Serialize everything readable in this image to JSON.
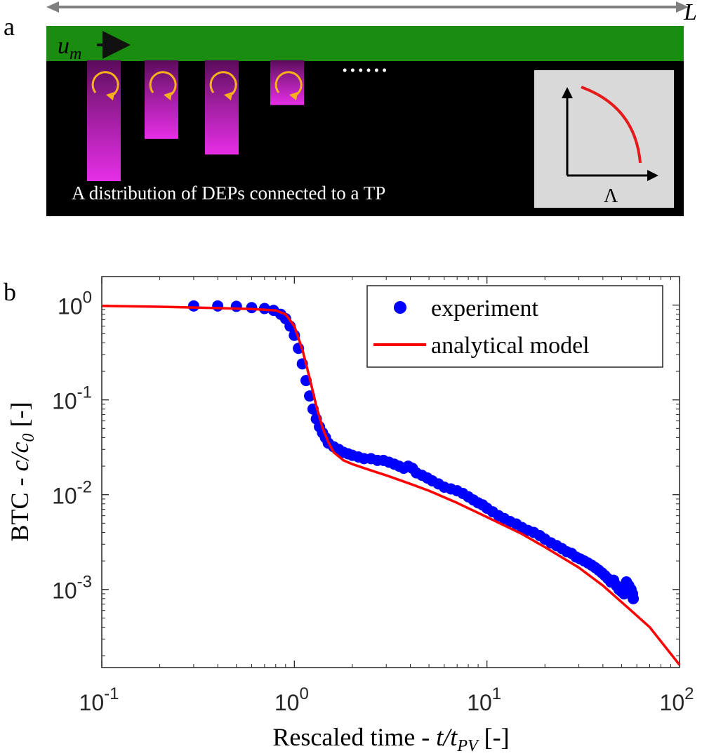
{
  "panel_a": {
    "letter": "a",
    "length_label": "L",
    "velocity_label": "u",
    "velocity_subscript": "m",
    "caption": "A distribution of DEPs connected to a TP",
    "ellipsis": "• • • • • •",
    "inset_axis_label": "Λ",
    "colors": {
      "channel": "#1a8c10",
      "pit": "#e62ee6",
      "background": "#000000",
      "vortex": "#f7b21b",
      "inset_bg": "#d9d9d9",
      "inset_curve": "#e51a1a"
    },
    "pit_depth_fractions": [
      1.0,
      0.65,
      0.78,
      0.37
    ]
  },
  "panel_b": {
    "letter": "b"
  },
  "chart_data": {
    "type": "scatter",
    "xscale": "log",
    "yscale": "log",
    "xlim": [
      0.1,
      100
    ],
    "ylim": [
      0.00015,
      2
    ],
    "xlabel": "Rescaled time - t/t_PV [-]",
    "xlabel_text": "Rescaled time - ",
    "xlabel_var": "t/t",
    "xlabel_sub": "PV",
    "xlabel_unit": " [-]",
    "ylabel_text": "BTC - ",
    "ylabel_var": "c/c",
    "ylabel_sub": "0",
    "ylabel_unit": " [-]",
    "xticks": [
      {
        "value": 0.1,
        "base": "10",
        "exp": "-1"
      },
      {
        "value": 1,
        "base": "10",
        "exp": "0"
      },
      {
        "value": 10,
        "base": "10",
        "exp": "1"
      },
      {
        "value": 100,
        "base": "10",
        "exp": "2"
      }
    ],
    "yticks": [
      {
        "value": 1,
        "base": "10",
        "exp": "0"
      },
      {
        "value": 0.1,
        "base": "10",
        "exp": "-1"
      },
      {
        "value": 0.01,
        "base": "10",
        "exp": "-2"
      },
      {
        "value": 0.001,
        "base": "10",
        "exp": "-3"
      }
    ],
    "legend": {
      "placement": "top-right",
      "entries": [
        "experiment",
        "analytical model"
      ]
    },
    "series": [
      {
        "name": "experiment",
        "kind": "scatter",
        "color": "#0000ff",
        "x": [
          0.3,
          0.4,
          0.5,
          0.6,
          0.7,
          0.78,
          0.85,
          0.9,
          0.95,
          1.0,
          1.05,
          1.1,
          1.15,
          1.2,
          1.25,
          1.3,
          1.35,
          1.4,
          1.45,
          1.5,
          1.6,
          1.7,
          1.8,
          1.9,
          2.0,
          2.15,
          2.3,
          2.5,
          2.7,
          2.9,
          3.1,
          3.3,
          3.5,
          3.7,
          3.9,
          4.1,
          4.3,
          4.6,
          4.9,
          5.2,
          5.6,
          6.0,
          6.5,
          7.0,
          7.5,
          8.0,
          8.5,
          9.0,
          9.5,
          10.0,
          10.7,
          11.5,
          12.3,
          13.2,
          14.2,
          15.2,
          16.3,
          17.5,
          18.8,
          20.0,
          21.5,
          23.0,
          24.5,
          26.0,
          27.5,
          29.0,
          30.5,
          32.0,
          33.5,
          35.0,
          36.5,
          38.0,
          39.5,
          41.0,
          42.5,
          44.0,
          45.5,
          47.0,
          48.5,
          50.0,
          51.5,
          53.0,
          54.5,
          56.0,
          57.0,
          57.5
        ],
        "y": [
          0.98,
          0.98,
          0.97,
          0.94,
          0.92,
          0.88,
          0.8,
          0.72,
          0.6,
          0.48,
          0.35,
          0.24,
          0.16,
          0.11,
          0.08,
          0.063,
          0.052,
          0.045,
          0.04,
          0.035,
          0.032,
          0.03,
          0.028,
          0.027,
          0.026,
          0.025,
          0.024,
          0.024,
          0.023,
          0.023,
          0.022,
          0.021,
          0.02,
          0.019,
          0.02,
          0.019,
          0.017,
          0.016,
          0.015,
          0.014,
          0.013,
          0.012,
          0.0115,
          0.011,
          0.0103,
          0.0095,
          0.0088,
          0.0082,
          0.0078,
          0.0072,
          0.0066,
          0.006,
          0.0056,
          0.0052,
          0.0049,
          0.0045,
          0.0042,
          0.004,
          0.0037,
          0.0034,
          0.0031,
          0.0029,
          0.0027,
          0.0025,
          0.0024,
          0.0022,
          0.0021,
          0.002,
          0.0019,
          0.0018,
          0.0017,
          0.0016,
          0.0015,
          0.0014,
          0.0013,
          0.0012,
          0.00125,
          0.0011,
          0.001,
          0.00095,
          0.0009,
          0.0012,
          0.0011,
          0.001,
          0.0009,
          0.0008
        ]
      },
      {
        "name": "analytical model",
        "kind": "line",
        "color": "#ff0000",
        "x": [
          0.1,
          0.2,
          0.4,
          0.6,
          0.8,
          0.9,
          1.0,
          1.1,
          1.2,
          1.3,
          1.4,
          1.5,
          1.6,
          1.8,
          2.0,
          2.5,
          3,
          4,
          5,
          7,
          10,
          15,
          20,
          30,
          40,
          55,
          70,
          100
        ],
        "y": [
          0.98,
          0.96,
          0.93,
          0.91,
          0.88,
          0.8,
          0.6,
          0.34,
          0.17,
          0.086,
          0.051,
          0.036,
          0.028,
          0.023,
          0.021,
          0.018,
          0.016,
          0.013,
          0.011,
          0.0082,
          0.0058,
          0.0039,
          0.0028,
          0.0017,
          0.0011,
          0.00062,
          0.0004,
          0.00016
        ]
      }
    ]
  }
}
